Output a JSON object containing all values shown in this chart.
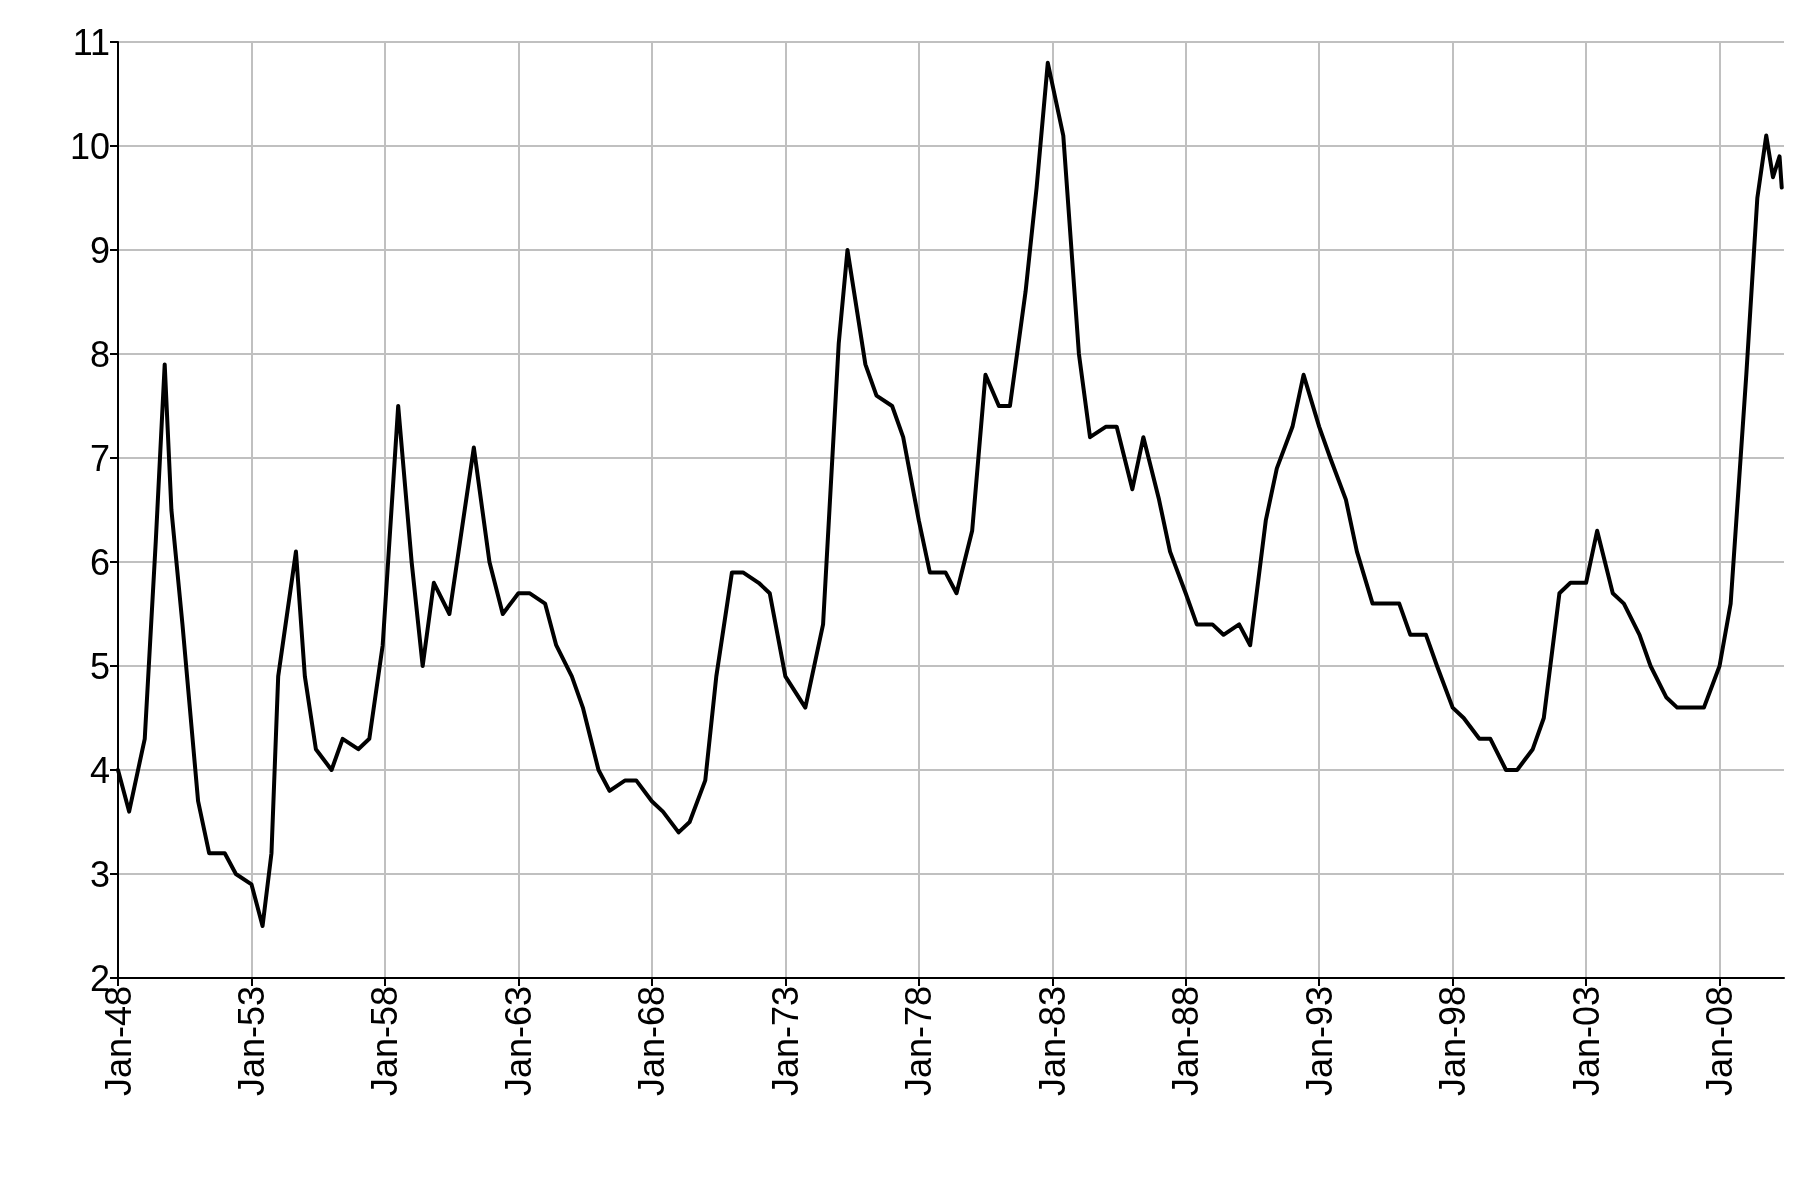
{
  "chart_data": {
    "type": "line",
    "x": [
      "1948-01",
      "1948-06",
      "1949-01",
      "1949-06",
      "1949-10",
      "1950-01",
      "1950-06",
      "1951-01",
      "1951-06",
      "1952-01",
      "1952-06",
      "1953-01",
      "1953-06",
      "1953-10",
      "1954-01",
      "1954-09",
      "1955-01",
      "1955-06",
      "1956-01",
      "1956-06",
      "1957-01",
      "1957-06",
      "1957-12",
      "1958-07",
      "1959-01",
      "1959-06",
      "1959-11",
      "1960-06",
      "1961-05",
      "1961-12",
      "1962-06",
      "1963-01",
      "1963-06",
      "1964-01",
      "1964-06",
      "1965-01",
      "1965-06",
      "1966-01",
      "1966-06",
      "1967-01",
      "1967-06",
      "1968-01",
      "1968-06",
      "1969-01",
      "1969-06",
      "1970-01",
      "1970-06",
      "1971-01",
      "1971-06",
      "1972-01",
      "1972-06",
      "1973-01",
      "1973-10",
      "1974-06",
      "1975-01",
      "1975-05",
      "1976-01",
      "1976-06",
      "1977-01",
      "1977-06",
      "1978-01",
      "1978-06",
      "1979-01",
      "1979-06",
      "1980-01",
      "1980-07",
      "1981-01",
      "1981-06",
      "1982-01",
      "1982-06",
      "1982-11",
      "1983-06",
      "1984-01",
      "1984-06",
      "1985-01",
      "1985-06",
      "1986-01",
      "1986-06",
      "1987-01",
      "1987-06",
      "1988-01",
      "1988-06",
      "1989-01",
      "1989-06",
      "1990-01",
      "1990-06",
      "1991-01",
      "1991-06",
      "1992-01",
      "1992-06",
      "1993-01",
      "1993-06",
      "1994-01",
      "1994-06",
      "1995-01",
      "1995-06",
      "1996-01",
      "1996-06",
      "1997-01",
      "1997-06",
      "1998-01",
      "1998-06",
      "1999-01",
      "1999-06",
      "2000-01",
      "2000-06",
      "2001-01",
      "2001-06",
      "2002-01",
      "2002-06",
      "2003-01",
      "2003-06",
      "2004-01",
      "2004-06",
      "2005-01",
      "2005-06",
      "2006-01",
      "2006-06",
      "2007-01",
      "2007-06",
      "2008-01",
      "2008-06",
      "2009-01",
      "2009-06",
      "2009-10",
      "2010-01",
      "2010-04",
      "2010-05"
    ],
    "series": [
      {
        "color": "#000000",
        "values": [
          4.0,
          3.6,
          4.3,
          6.2,
          7.9,
          6.5,
          5.4,
          3.7,
          3.2,
          3.2,
          3.0,
          2.9,
          2.5,
          3.2,
          4.9,
          6.1,
          4.9,
          4.2,
          4.0,
          4.3,
          4.2,
          4.3,
          5.2,
          7.5,
          6.0,
          5.0,
          5.8,
          5.5,
          7.1,
          6.0,
          5.5,
          5.7,
          5.7,
          5.6,
          5.2,
          4.9,
          4.6,
          4.0,
          3.8,
          3.9,
          3.9,
          3.7,
          3.6,
          3.4,
          3.5,
          3.9,
          4.9,
          5.9,
          5.9,
          5.8,
          5.7,
          4.9,
          4.6,
          5.4,
          8.1,
          9.0,
          7.9,
          7.6,
          7.5,
          7.2,
          6.4,
          5.9,
          5.9,
          5.7,
          6.3,
          7.8,
          7.5,
          7.5,
          8.6,
          9.6,
          10.8,
          10.1,
          8.0,
          7.2,
          7.3,
          7.3,
          6.7,
          7.2,
          6.6,
          6.1,
          5.7,
          5.4,
          5.4,
          5.3,
          5.4,
          5.2,
          6.4,
          6.9,
          7.3,
          7.8,
          7.3,
          7.0,
          6.6,
          6.1,
          5.6,
          5.6,
          5.6,
          5.3,
          5.3,
          5.0,
          4.6,
          4.5,
          4.3,
          4.3,
          4.0,
          4.0,
          4.2,
          4.5,
          5.7,
          5.8,
          5.8,
          6.3,
          5.7,
          5.6,
          5.3,
          5.0,
          4.7,
          4.6,
          4.6,
          4.6,
          5.0,
          5.6,
          7.8,
          9.5,
          10.1,
          9.7,
          9.9,
          9.6
        ]
      }
    ],
    "xlim": [
      "1948-01",
      "2010-06"
    ],
    "xticks": [
      {
        "value": "1948-01",
        "label": "Jan-48"
      },
      {
        "value": "1953-01",
        "label": "Jan-53"
      },
      {
        "value": "1958-01",
        "label": "Jan-58"
      },
      {
        "value": "1963-01",
        "label": "Jan-63"
      },
      {
        "value": "1968-01",
        "label": "Jan-68"
      },
      {
        "value": "1973-01",
        "label": "Jan-73"
      },
      {
        "value": "1978-01",
        "label": "Jan-78"
      },
      {
        "value": "1983-01",
        "label": "Jan-83"
      },
      {
        "value": "1988-01",
        "label": "Jan-88"
      },
      {
        "value": "1993-01",
        "label": "Jan-93"
      },
      {
        "value": "1998-01",
        "label": "Jan-98"
      },
      {
        "value": "2003-01",
        "label": "Jan-03"
      },
      {
        "value": "2008-01",
        "label": "Jan-08"
      }
    ],
    "ylim": [
      2,
      11
    ],
    "yticks": [
      2,
      3,
      4,
      5,
      6,
      7,
      8,
      9,
      10,
      11
    ],
    "grid": true,
    "marker": "none",
    "line_style": "solid"
  }
}
